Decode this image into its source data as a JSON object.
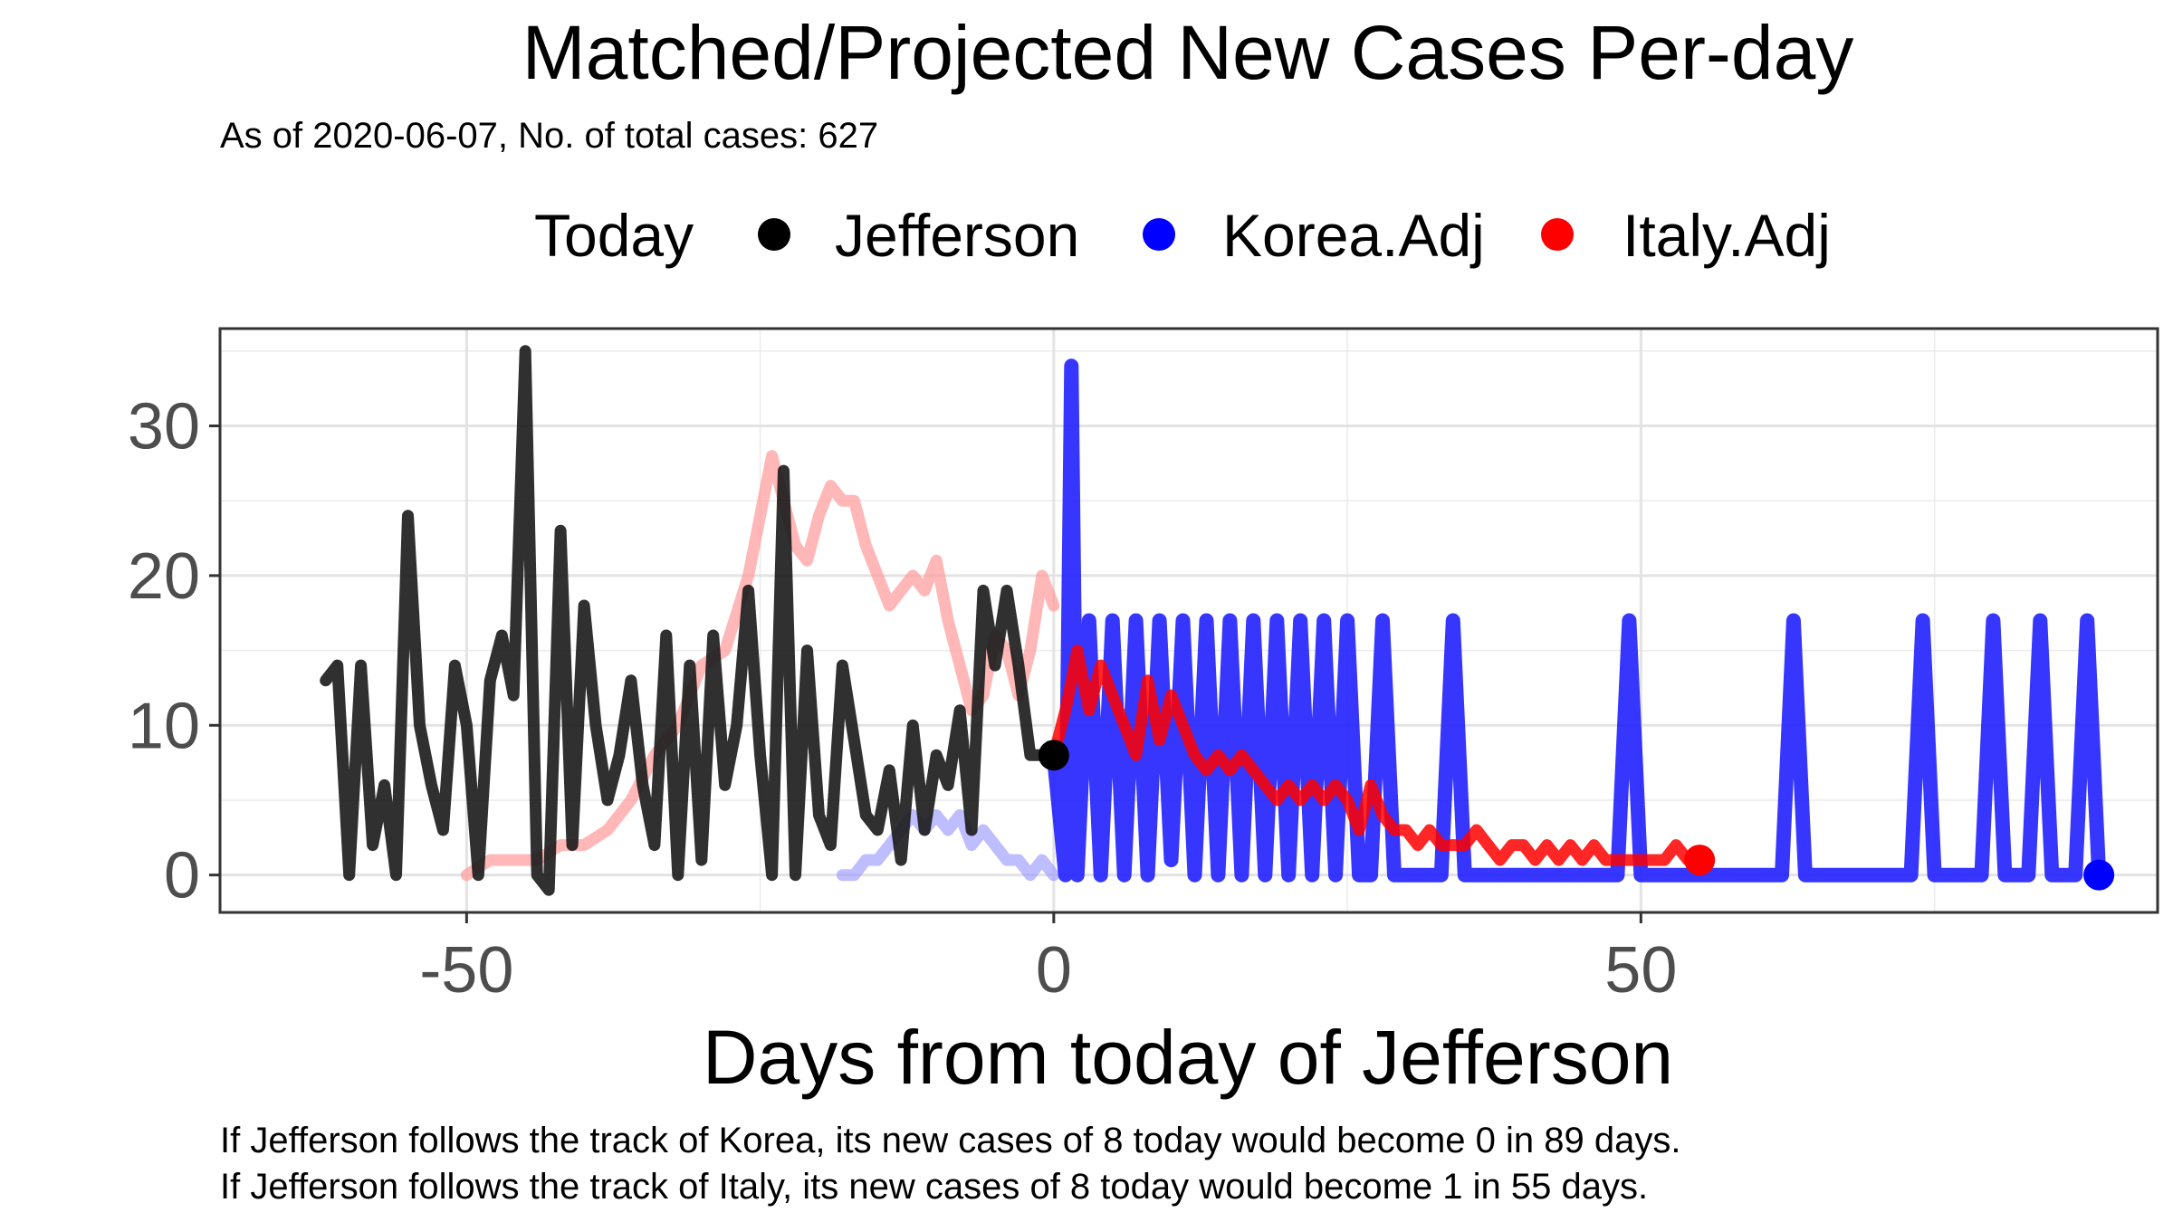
{
  "chart_data": {
    "type": "line",
    "title": "Matched/Projected New Cases Per-day",
    "subtitle": "As of 2020-06-07, No. of total cases: 627",
    "xlabel": "Days from today of Jefferson",
    "ylabel": "",
    "xlim": [
      -71,
      94
    ],
    "ylim": [
      -2.5,
      36.5
    ],
    "x_ticks": [
      -50,
      0,
      50
    ],
    "x_tick_labels": [
      "-50",
      "0",
      "50"
    ],
    "y_ticks": [
      0,
      10,
      20,
      30
    ],
    "y_tick_labels": [
      "0",
      "10",
      "20",
      "30"
    ],
    "grid": true,
    "legend": {
      "position": "top",
      "title": "Today",
      "entries": [
        "Jefferson",
        "Korea.Adj",
        "Italy.Adj"
      ]
    },
    "colors": {
      "Jefferson": "#000000",
      "Korea.Adj": "#0000ff",
      "Italy.Adj": "#ff0000"
    },
    "series": [
      {
        "name": "Jefferson",
        "x": [
          -62,
          -61,
          -60,
          -59,
          -58,
          -57,
          -56,
          -55,
          -54,
          -53,
          -52,
          -51,
          -50,
          -49,
          -48,
          -47,
          -46,
          -45,
          -44,
          -43,
          -42,
          -41,
          -40,
          -39,
          -38,
          -37,
          -36,
          -35,
          -34,
          -33,
          -32,
          -31,
          -30,
          -29,
          -28,
          -27,
          -26,
          -25,
          -24,
          -23,
          -22,
          -21,
          -20,
          -19,
          -18,
          -17,
          -16,
          -15,
          -14,
          -13,
          -12,
          -11,
          -10,
          -9,
          -8,
          -7,
          -6,
          -5,
          -4,
          -3,
          -2,
          -1,
          0
        ],
        "values": [
          13,
          14,
          0,
          14,
          2,
          6,
          0,
          24,
          10,
          6,
          3,
          14,
          10,
          0,
          13,
          16,
          12,
          35,
          0,
          -1,
          23,
          2,
          18,
          10,
          5,
          8,
          13,
          6,
          2,
          16,
          0,
          14,
          1,
          16,
          6,
          10,
          19,
          8,
          0,
          27,
          0,
          15,
          4,
          2,
          14,
          9,
          4,
          3,
          7,
          1,
          10,
          3,
          8,
          6,
          11,
          3,
          19,
          14,
          19,
          14,
          8,
          8,
          8
        ]
      },
      {
        "name": "Korea.Adj",
        "x": [
          0,
          1,
          1.5,
          2,
          3,
          4,
          5,
          6,
          7,
          8,
          9,
          10,
          11,
          12,
          13,
          14,
          15,
          16,
          17,
          18,
          19,
          20,
          21,
          22,
          23,
          24,
          25,
          26,
          27,
          28,
          29,
          30,
          31,
          32,
          33,
          34,
          35,
          36,
          37,
          38,
          39,
          40,
          41,
          42,
          43,
          44,
          45,
          46,
          47,
          48,
          49,
          50,
          51,
          52,
          53,
          54,
          55,
          56,
          57,
          58,
          59,
          60,
          61,
          62,
          63,
          64,
          65,
          66,
          67,
          68,
          69,
          70,
          71,
          72,
          73,
          74,
          75,
          76,
          77,
          78,
          79,
          80,
          81,
          82,
          83,
          84,
          85,
          86,
          87,
          88,
          89
        ],
        "values": [
          8,
          0,
          34,
          0,
          17,
          0,
          17,
          0,
          17,
          0,
          17,
          1,
          17,
          0,
          17,
          0,
          17,
          0,
          17,
          0,
          17,
          0,
          17,
          0,
          17,
          0,
          17,
          0,
          0,
          17,
          0,
          0,
          0,
          0,
          0,
          17,
          0,
          0,
          0,
          0,
          0,
          0,
          0,
          0,
          0,
          0,
          0,
          0,
          0,
          0,
          17,
          0,
          0,
          0,
          0,
          0,
          0,
          0,
          0,
          0,
          0,
          0,
          0,
          0,
          17,
          0,
          0,
          0,
          0,
          0,
          0,
          0,
          0,
          0,
          0,
          17,
          0,
          0,
          0,
          0,
          0,
          17,
          0,
          0,
          0,
          17,
          0,
          0,
          0,
          17,
          0
        ]
      },
      {
        "name": "Italy.Adj",
        "x": [
          0,
          1,
          2,
          3,
          4,
          5,
          6,
          7,
          8,
          9,
          10,
          11,
          12,
          13,
          14,
          15,
          16,
          17,
          18,
          19,
          20,
          21,
          22,
          23,
          24,
          25,
          26,
          27,
          28,
          29,
          30,
          31,
          32,
          33,
          34,
          35,
          36,
          37,
          38,
          39,
          40,
          41,
          42,
          43,
          44,
          45,
          46,
          47,
          48,
          49,
          50,
          51,
          52,
          53,
          54,
          55
        ],
        "values": [
          8,
          11,
          15,
          11,
          14,
          12,
          10,
          8,
          13,
          9,
          12,
          10,
          8,
          7,
          8,
          7,
          8,
          7,
          6,
          5,
          6,
          5,
          6,
          5,
          6,
          5,
          3,
          6,
          4,
          3,
          3,
          2,
          3,
          2,
          2,
          2,
          3,
          2,
          1,
          2,
          2,
          1,
          2,
          1,
          2,
          1,
          2,
          1,
          1,
          1,
          1,
          1,
          1,
          2,
          1,
          1
        ]
      },
      {
        "name": "Korea (matched history)",
        "x": [
          -18,
          -17,
          -16,
          -15,
          -14,
          -13,
          -12,
          -11,
          -10,
          -9,
          -8,
          -7,
          -6,
          -5,
          -4,
          -3,
          -2,
          -1,
          0
        ],
        "values": [
          0,
          0,
          1,
          1,
          2,
          3,
          4,
          3,
          4,
          3,
          4,
          2,
          3,
          2,
          1,
          1,
          0,
          1,
          0
        ]
      },
      {
        "name": "Italy (matched history)",
        "x": [
          -50,
          -48,
          -46,
          -44,
          -42,
          -40,
          -38,
          -36,
          -34,
          -32,
          -30,
          -28,
          -26,
          -24,
          -23,
          -22,
          -21,
          -20,
          -19,
          -18,
          -17,
          -16,
          -15,
          -14,
          -13,
          -12,
          -11,
          -10,
          -9,
          -8,
          -7,
          -6,
          -5,
          -4,
          -3,
          -2,
          -1,
          0
        ],
        "values": [
          0,
          1,
          1,
          1,
          2,
          2,
          3,
          5,
          8,
          10,
          14,
          15,
          20,
          28,
          25,
          22,
          21,
          24,
          26,
          25,
          25,
          22,
          20,
          18,
          19,
          20,
          19,
          21,
          17,
          14,
          11,
          12,
          16,
          15,
          12,
          15,
          20,
          18
        ]
      }
    ],
    "today_points": [
      {
        "series": "Jefferson",
        "x": 0,
        "y": 8
      },
      {
        "series": "Korea.Adj",
        "x": 89,
        "y": 0
      },
      {
        "series": "Italy.Adj",
        "x": 55,
        "y": 1
      }
    ]
  },
  "caption": {
    "line1": "If Jefferson follows the track of Korea, its new cases of 8 today would become 0 in 89 days.",
    "line2": "If Jefferson follows the track of Italy, its new cases of 8 today would become 1 in 55 days."
  }
}
